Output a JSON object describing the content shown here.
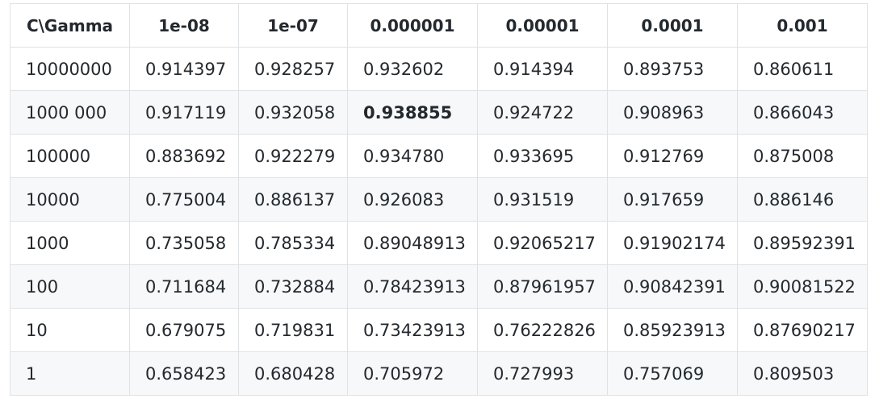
{
  "table": {
    "headers": [
      "C\\Gamma",
      "1e-08",
      "1e-07",
      "0.000001",
      "0.00001",
      "0.0001",
      "0.001"
    ],
    "rows": [
      [
        "10000000",
        "0.914397",
        "0.928257",
        "0.932602",
        "0.914394",
        "0.893753",
        "0.860611"
      ],
      [
        "1000 000",
        "0.917119",
        "0.932058",
        "0.938855",
        "0.924722",
        "0.908963",
        "0.866043"
      ],
      [
        "100000",
        "0.883692",
        "0.922279",
        "0.934780",
        "0.933695",
        "0.912769",
        "0.875008"
      ],
      [
        "10000",
        "0.775004",
        "0.886137",
        "0.926083",
        "0.931519",
        "0.917659",
        "0.886146"
      ],
      [
        "1000",
        "0.735058",
        "0.785334",
        "0.89048913",
        "0.92065217",
        "0.91902174",
        "0.89592391"
      ],
      [
        "100",
        "0.711684",
        "0.732884",
        "0.78423913",
        "0.87961957",
        "0.90842391",
        "0.90081522"
      ],
      [
        "10",
        "0.679075",
        "0.719831",
        "0.73423913",
        "0.76222826",
        "0.85923913",
        "0.87690217"
      ],
      [
        "1",
        "0.658423",
        "0.680428",
        "0.705972",
        "0.727993",
        "0.757069",
        "0.809503"
      ]
    ],
    "highlight": {
      "row": 1,
      "col": 3
    }
  },
  "colors": {
    "border": "#dfe2e5",
    "stripe": "#f6f8fa",
    "text": "#24292e"
  }
}
